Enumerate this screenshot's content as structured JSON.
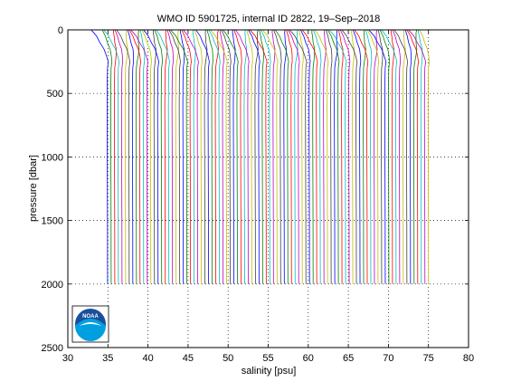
{
  "chart_data": {
    "type": "line",
    "title": "WMO ID 5901725, internal ID 2822, 19–Sep–2018",
    "xlabel": "salinity [psu]",
    "ylabel": "pressure [dbar]",
    "xlim": [
      30,
      80
    ],
    "ylim": [
      0,
      2500
    ],
    "y_reversed": true,
    "grid": true,
    "x_ticks": [
      30,
      35,
      40,
      45,
      50,
      55,
      60,
      65,
      70,
      75,
      80
    ],
    "x_tick_labels": [
      "30",
      "35",
      "40",
      "45",
      "50",
      "55",
      "60",
      "65",
      "70",
      "75",
      "80"
    ],
    "y_ticks": [
      0,
      500,
      1000,
      1500,
      2000,
      2500
    ],
    "y_tick_labels": [
      "0",
      "500",
      "1000",
      "1500",
      "2000",
      "2500"
    ],
    "profile_count": 90,
    "first_profile_offset": 0,
    "offset_step": 0.45,
    "profile_shape": {
      "pressure": [
        0,
        20,
        50,
        100,
        150,
        200,
        250,
        300,
        400,
        600,
        800,
        1000,
        1200,
        1400,
        1600,
        1800,
        2000
      ],
      "salinity": [
        34.1,
        34.2,
        34.4,
        34.6,
        34.9,
        35.0,
        35.05,
        34.95,
        34.92,
        34.9,
        34.91,
        34.92,
        34.93,
        34.94,
        34.95,
        34.95,
        34.96
      ]
    },
    "series_colors": [
      "#0000ff",
      "#008000",
      "#ff0000",
      "#00bfbf",
      "#bf00bf",
      "#bfbf00",
      "#404040"
    ],
    "logo": "NOAA"
  }
}
